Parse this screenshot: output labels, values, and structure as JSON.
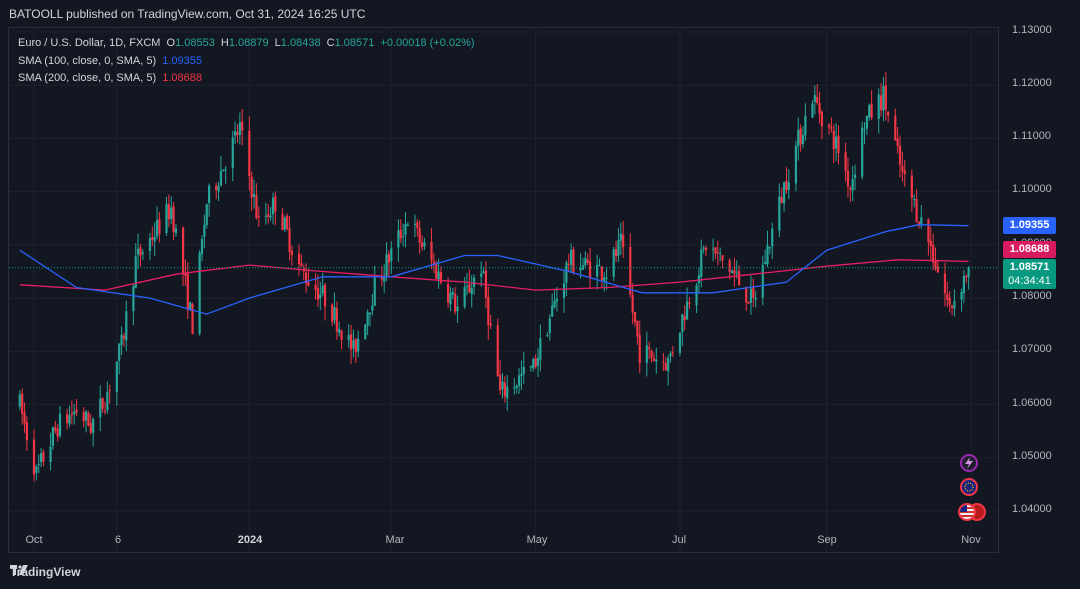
{
  "header": {
    "published": "BATOOLL published on TradingView.com, Oct 31, 2024 16:25 UTC"
  },
  "legend": {
    "symbol": "Euro / U.S. Dollar, 1D, FXCM",
    "o_label": "O",
    "o": "1.08553",
    "h_label": "H",
    "h": "1.08879",
    "l_label": "L",
    "l": "1.08438",
    "c_label": "C",
    "c": "1.08571",
    "change": "+0.00018 (+0.02%)",
    "sma100_label": "SMA (100, close, 0, SMA, 5)",
    "sma100_value": "1.09355",
    "sma200_label": "SMA (200, close, 0, SMA, 5)",
    "sma200_value": "1.08688"
  },
  "price_tags": {
    "sma100": "1.09355",
    "sma200": "1.08688",
    "last": "1.08571",
    "countdown": "04:34:41"
  },
  "footer": {
    "brand": "TradingView"
  },
  "colors": {
    "up": "#26a69a",
    "down": "#f23645",
    "sma100": "#2962ff",
    "sma200": "#e91e63",
    "background": "#131722"
  },
  "chart_data": {
    "type": "candlestick",
    "instrument": "Euro / U.S. Dollar",
    "timeframe": "1D",
    "ylim": [
      1.035,
      1.1335
    ],
    "y_ticks": [
      "1.13000",
      "1.12000",
      "1.11000",
      "1.10000",
      "1.09000",
      "1.08000",
      "1.07000",
      "1.06000",
      "1.05000",
      "1.04000"
    ],
    "x_ticks": [
      "Oct",
      "6",
      "2024",
      "Mar",
      "May",
      "Jul",
      "Sep",
      "Nov"
    ],
    "x_tick_dates": [
      "2023-10-02",
      "2023-11-06",
      "2024-01-01",
      "2024-03-01",
      "2024-05-01",
      "2024-07-01",
      "2024-09-01",
      "2024-11-01"
    ],
    "date_range": [
      "2023-09-26",
      "2024-10-31"
    ],
    "close_path": [
      [
        "2023-09-26",
        1.06
      ],
      [
        "2023-10-03",
        1.047
      ],
      [
        "2023-10-12",
        1.056
      ],
      [
        "2023-10-20",
        1.059
      ],
      [
        "2023-10-26",
        1.056
      ],
      [
        "2023-11-01",
        1.061
      ],
      [
        "2023-11-08",
        1.071
      ],
      [
        "2023-11-14",
        1.087
      ],
      [
        "2023-11-29",
        1.097
      ],
      [
        "2023-12-08",
        1.075
      ],
      [
        "2023-12-14",
        1.098
      ],
      [
        "2023-12-28",
        1.112
      ],
      [
        "2024-01-05",
        1.094
      ],
      [
        "2024-01-12",
        1.098
      ],
      [
        "2024-01-23",
        1.085
      ],
      [
        "2024-02-02",
        1.08
      ],
      [
        "2024-02-14",
        1.07
      ],
      [
        "2024-02-23",
        1.082
      ],
      [
        "2024-03-08",
        1.095
      ],
      [
        "2024-03-19",
        1.086
      ],
      [
        "2024-03-29",
        1.078
      ],
      [
        "2024-04-08",
        1.086
      ],
      [
        "2024-04-16",
        1.062
      ],
      [
        "2024-04-30",
        1.067
      ],
      [
        "2024-05-15",
        1.087
      ],
      [
        "2024-05-31",
        1.085
      ],
      [
        "2024-06-06",
        1.09
      ],
      [
        "2024-06-14",
        1.07
      ],
      [
        "2024-06-26",
        1.068
      ],
      [
        "2024-07-12",
        1.09
      ],
      [
        "2024-07-23",
        1.085
      ],
      [
        "2024-08-01",
        1.079
      ],
      [
        "2024-08-14",
        1.101
      ],
      [
        "2024-08-26",
        1.118
      ],
      [
        "2024-09-06",
        1.108
      ],
      [
        "2024-09-11",
        1.101
      ],
      [
        "2024-09-17",
        1.113
      ],
      [
        "2024-09-25",
        1.118
      ],
      [
        "2024-10-03",
        1.103
      ],
      [
        "2024-10-14",
        1.091
      ],
      [
        "2024-10-23",
        1.078
      ],
      [
        "2024-10-31",
        1.0857
      ]
    ],
    "sma100_path": [
      [
        "2023-09-26",
        1.089
      ],
      [
        "2023-10-20",
        1.082
      ],
      [
        "2023-11-20",
        1.08
      ],
      [
        "2023-12-14",
        1.077
      ],
      [
        "2024-01-01",
        1.08
      ],
      [
        "2024-02-01",
        1.084
      ],
      [
        "2024-03-01",
        1.084
      ],
      [
        "2024-04-01",
        1.088
      ],
      [
        "2024-04-15",
        1.088
      ],
      [
        "2024-05-15",
        1.085
      ],
      [
        "2024-06-15",
        1.081
      ],
      [
        "2024-07-15",
        1.081
      ],
      [
        "2024-08-15",
        1.083
      ],
      [
        "2024-09-01",
        1.089
      ],
      [
        "2024-09-26",
        1.0925
      ],
      [
        "2024-10-10",
        1.0938
      ],
      [
        "2024-10-31",
        1.0936
      ]
    ],
    "sma200_path": [
      [
        "2023-09-26",
        1.0825
      ],
      [
        "2023-11-01",
        1.0815
      ],
      [
        "2023-12-01",
        1.0845
      ],
      [
        "2024-01-01",
        1.0862
      ],
      [
        "2024-02-01",
        1.085
      ],
      [
        "2024-03-01",
        1.084
      ],
      [
        "2024-04-01",
        1.083
      ],
      [
        "2024-05-01",
        1.0815
      ],
      [
        "2024-06-01",
        1.082
      ],
      [
        "2024-07-01",
        1.083
      ],
      [
        "2024-08-01",
        1.0845
      ],
      [
        "2024-09-01",
        1.086
      ],
      [
        "2024-10-01",
        1.0872
      ],
      [
        "2024-10-31",
        1.0869
      ]
    ],
    "last_price": 1.08571
  }
}
